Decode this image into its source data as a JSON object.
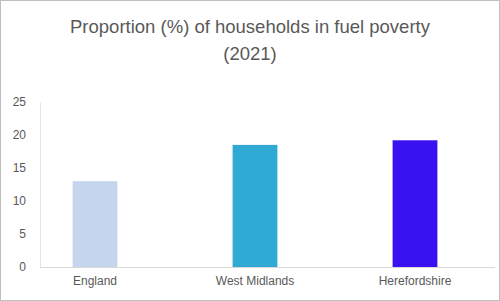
{
  "chart_data": {
    "type": "bar",
    "title": "Proportion (%) of households in fuel poverty (2021)",
    "categories": [
      "England",
      "West Midlands",
      "Herefordshire"
    ],
    "values": [
      13,
      18.5,
      19.2
    ],
    "colors": [
      "#c6d5ee",
      "#31a9d5",
      "#3a12f2"
    ],
    "ylim": [
      0,
      25
    ],
    "yticks": [
      0,
      5,
      10,
      15,
      20,
      25
    ],
    "grid": false
  }
}
